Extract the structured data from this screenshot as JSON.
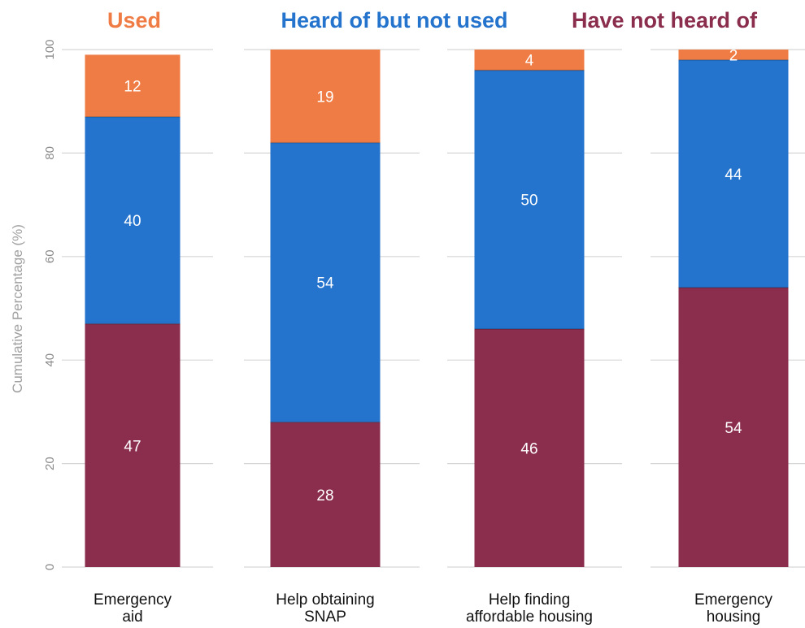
{
  "chart_data": {
    "type": "bar",
    "stacked": true,
    "ylabel": "Cumulative Percentage (%)",
    "ylim": [
      0,
      100
    ],
    "yticks": [
      0,
      20,
      40,
      60,
      80,
      100
    ],
    "grid": true,
    "legend_position": "top",
    "categories": [
      [
        "Emergency",
        "aid"
      ],
      [
        "Help obtaining",
        "SNAP"
      ],
      [
        "Help finding",
        "affordable housing"
      ],
      [
        "Emergency",
        "housing"
      ]
    ],
    "series": [
      {
        "name": "Have not heard of",
        "color": "#8b2e4d",
        "values": [
          47,
          28,
          46,
          54
        ]
      },
      {
        "name": "Heard of  but not used",
        "color": "#2473cc",
        "values": [
          40,
          54,
          50,
          44
        ]
      },
      {
        "name": "Used",
        "color": "#f07c45",
        "values": [
          12,
          19,
          4,
          2
        ]
      }
    ]
  }
}
